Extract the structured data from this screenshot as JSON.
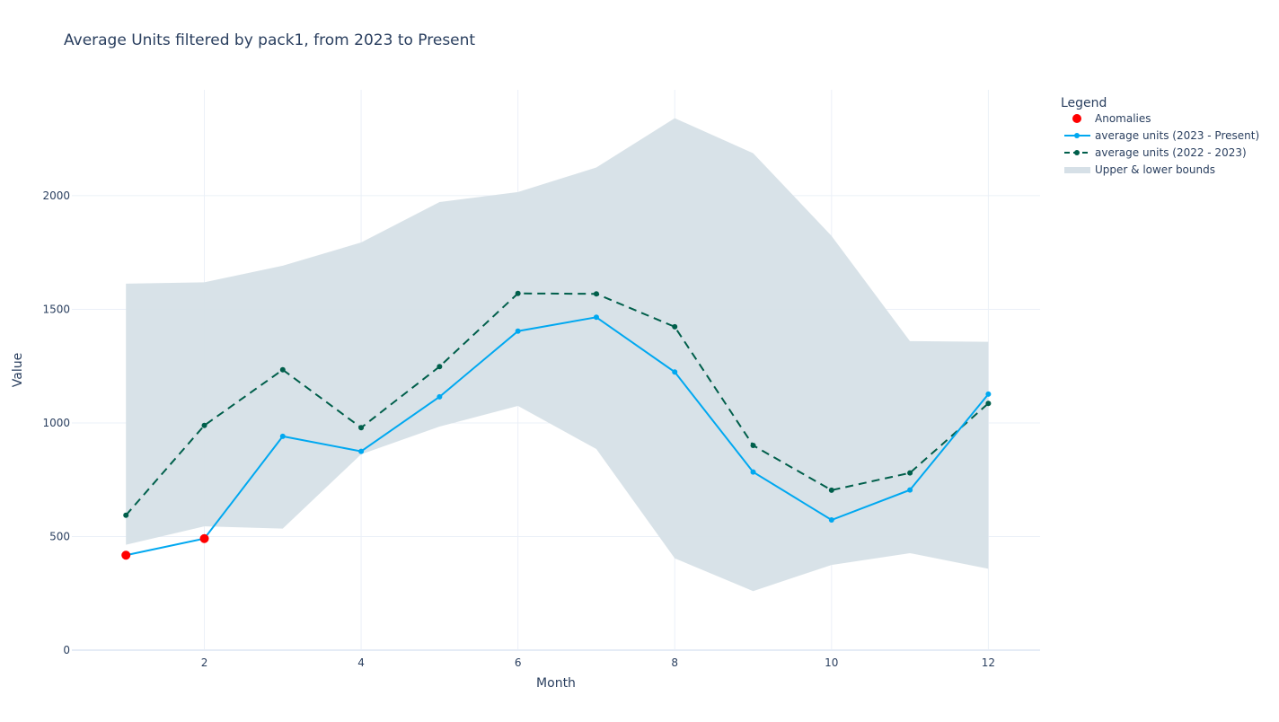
{
  "chart_data": {
    "type": "line",
    "title": "Average Units filtered by pack1, from 2023 to Present",
    "xlabel": "Month",
    "ylabel": "Value",
    "x": [
      1,
      2,
      3,
      4,
      5,
      6,
      7,
      8,
      9,
      10,
      11,
      12
    ],
    "xlim": [
      0.31,
      12.66
    ],
    "ylim": [
      0,
      2466
    ],
    "x_ticks": [
      2,
      4,
      6,
      8,
      10,
      12
    ],
    "y_ticks": [
      0,
      500,
      1000,
      1500,
      2000
    ],
    "grid": true,
    "legend": {
      "title": "Legend",
      "position": "top-right-outside",
      "entries": [
        {
          "name": "Anomalies",
          "kind": "marker",
          "color": "#ff0000"
        },
        {
          "name": "average units (2023 - Present)",
          "kind": "line-marker",
          "color": "#00a8f0",
          "dash": "solid"
        },
        {
          "name": "average units (2022 - 2023)",
          "kind": "line-marker",
          "color": "#005f4b",
          "dash": "dash"
        },
        {
          "name": "Upper & lower bounds",
          "kind": "band",
          "color": "#d6e0e7"
        }
      ]
    },
    "series": [
      {
        "name": "Upper & lower bounds",
        "type": "band",
        "color": "#d6e0e7",
        "upper": [
          1613,
          1619,
          1692,
          1794,
          1972,
          2016,
          2124,
          2341,
          2187,
          1823,
          1360,
          1357
        ],
        "lower": [
          464,
          545,
          535,
          862,
          984,
          1075,
          885,
          404,
          260,
          375,
          427,
          358
        ]
      },
      {
        "name": "average units (2022 - 2023)",
        "type": "line",
        "dash": "dash",
        "color": "#005f4b",
        "values": [
          594,
          989,
          1234,
          979,
          1248,
          1570,
          1568,
          1423,
          901,
          704,
          780,
          1086
        ]
      },
      {
        "name": "average units (2023 - Present)",
        "type": "line",
        "dash": "solid",
        "color": "#00a8f0",
        "values": [
          418,
          491,
          941,
          875,
          1115,
          1404,
          1465,
          1224,
          784,
          573,
          705,
          1127
        ]
      },
      {
        "name": "Anomalies",
        "type": "scatter",
        "color": "#ff0000",
        "points": [
          {
            "x": 1,
            "y": 418
          },
          {
            "x": 2,
            "y": 491
          }
        ]
      }
    ]
  }
}
